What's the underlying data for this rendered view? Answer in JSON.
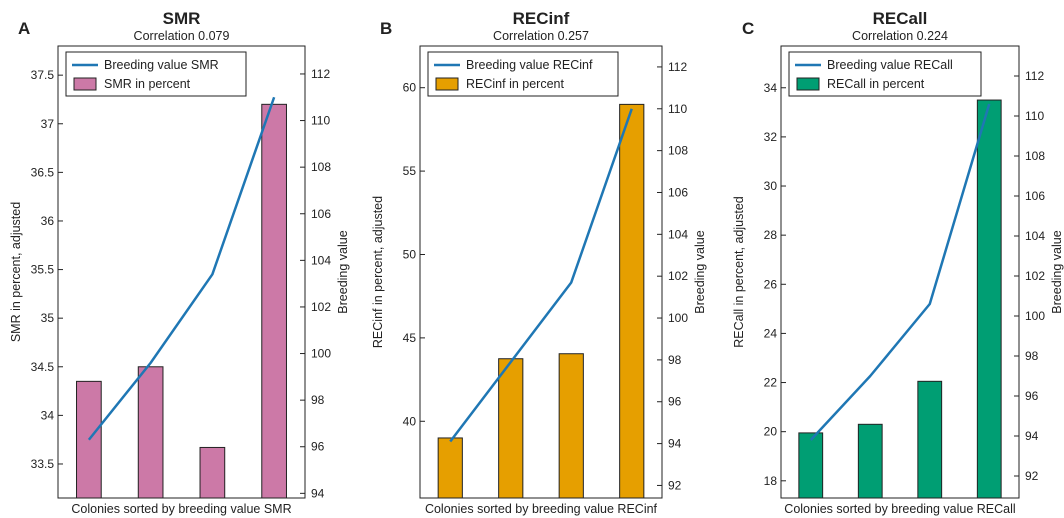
{
  "colors": {
    "line": "#1f77b4",
    "bar_smr": "#cc79a7",
    "bar_recinf": "#e69f00",
    "bar_recall": "#009e73",
    "axis": "#222222"
  },
  "chart_data": [
    {
      "type": "bar",
      "panel": "A",
      "title": "SMR",
      "subtitle": "Correlation 0.079",
      "xlabel": "Colonies sorted by breeding value SMR",
      "ylabel": "SMR in percent, adjusted",
      "y2label": "Breeding value",
      "categories": [
        "",
        "",
        "",
        ""
      ],
      "series": [
        {
          "name": "SMR in percent",
          "type": "bar",
          "axis": "left",
          "values": [
            34.35,
            34.5,
            33.67,
            37.2
          ]
        },
        {
          "name": "Breeding value SMR",
          "type": "line",
          "axis": "right",
          "values": [
            96.3,
            99.6,
            103.4,
            111.0
          ]
        }
      ],
      "ylim": [
        33.15,
        37.8
      ],
      "y2lim": [
        93.8,
        113.2
      ],
      "yticks": [
        "33.5",
        "34",
        "34.5",
        "35",
        "35.5",
        "36",
        "36.5",
        "37",
        "37.5"
      ],
      "y2ticks": [
        "94",
        "96",
        "98",
        "100",
        "102",
        "104",
        "106",
        "108",
        "110",
        "112"
      ],
      "legend_position": "top-left",
      "grid": false
    },
    {
      "type": "bar",
      "panel": "B",
      "title": "RECinf",
      "subtitle": "Correlation 0.257",
      "xlabel": "Colonies sorted by breeding value RECinf",
      "ylabel": "RECinf in percent, adjusted",
      "y2label": "Breeding value",
      "categories": [
        "",
        "",
        "",
        ""
      ],
      "series": [
        {
          "name": "RECinf in percent",
          "type": "bar",
          "axis": "left",
          "values": [
            39.0,
            43.75,
            44.05,
            59.0
          ]
        },
        {
          "name": "Breeding value RECinf",
          "type": "line",
          "axis": "right",
          "values": [
            94.1,
            97.9,
            101.7,
            110.0
          ]
        }
      ],
      "ylim": [
        35.4,
        62.5
      ],
      "y2lim": [
        91.4,
        113.0
      ],
      "yticks": [
        "40",
        "45",
        "50",
        "55",
        "60"
      ],
      "y2ticks": [
        "92",
        "94",
        "96",
        "98",
        "100",
        "102",
        "104",
        "106",
        "108",
        "110",
        "112"
      ],
      "legend_position": "top-left",
      "grid": false
    },
    {
      "type": "bar",
      "panel": "C",
      "title": "RECall",
      "subtitle": "Correlation 0.224",
      "xlabel": "Colonies sorted by breeding value RECall",
      "ylabel": "RECall in percent, adjusted",
      "y2label": "Breeding value",
      "categories": [
        "",
        "",
        "",
        ""
      ],
      "series": [
        {
          "name": "RECall in percent",
          "type": "bar",
          "axis": "left",
          "values": [
            19.95,
            20.3,
            22.05,
            33.5
          ]
        },
        {
          "name": "Breeding value RECall",
          "type": "line",
          "axis": "right",
          "values": [
            93.8,
            97.0,
            100.6,
            110.6
          ]
        }
      ],
      "ylim": [
        17.3,
        35.7
      ],
      "y2lim": [
        90.9,
        113.5
      ],
      "yticks": [
        "18",
        "20",
        "22",
        "24",
        "26",
        "28",
        "30",
        "32",
        "34"
      ],
      "y2ticks": [
        "92",
        "94",
        "96",
        "98",
        "100",
        "102",
        "104",
        "106",
        "108",
        "110",
        "112"
      ],
      "legend_position": "top-left",
      "grid": false
    }
  ]
}
